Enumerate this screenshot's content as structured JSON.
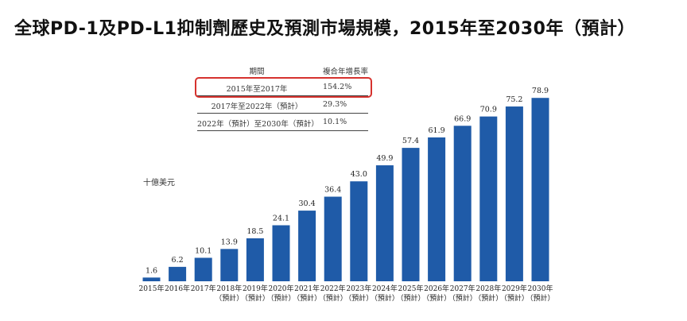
{
  "chart_data": {
    "type": "bar",
    "title": "全球PD-1及PD-L1抑制劑歷史及預測市場規模，2015年至2030年（預計）",
    "ylabel": "十億美元",
    "ylim": [
      0,
      80
    ],
    "grid": false,
    "categories": [
      {
        "year": "2015年",
        "note": ""
      },
      {
        "year": "2016年",
        "note": ""
      },
      {
        "year": "2017年",
        "note": ""
      },
      {
        "year": "2018年",
        "note": "（預計）"
      },
      {
        "year": "2019年",
        "note": "（預計）"
      },
      {
        "year": "2020年",
        "note": "（預計）"
      },
      {
        "year": "2021年",
        "note": "（預計）"
      },
      {
        "year": "2022年",
        "note": "（預計）"
      },
      {
        "year": "2023年",
        "note": "（預計）"
      },
      {
        "year": "2024年",
        "note": "（預計）"
      },
      {
        "year": "2025年",
        "note": "（預計）"
      },
      {
        "year": "2026年",
        "note": "（預計）"
      },
      {
        "year": "2027年",
        "note": "（預計）"
      },
      {
        "year": "2028年",
        "note": "（預計）"
      },
      {
        "year": "2029年",
        "note": "（預計）"
      },
      {
        "year": "2030年",
        "note": "（預計）"
      }
    ],
    "values": [
      1.6,
      6.2,
      10.1,
      13.9,
      18.5,
      24.1,
      30.4,
      36.4,
      43.0,
      49.9,
      57.4,
      61.9,
      66.9,
      70.9,
      75.2,
      78.9
    ],
    "value_labels": [
      "1.6",
      "6.2",
      "10.1",
      "13.9",
      "18.5",
      "24.1",
      "30.4",
      "36.4",
      "43.0",
      "49.9",
      "57.4",
      "61.9",
      "66.9",
      "70.9",
      "75.2",
      "78.9"
    ],
    "bar_color": "#1f5ba8"
  },
  "cagr_table": {
    "headers": {
      "period": "期間",
      "rate": "複合年增長率"
    },
    "rows": [
      {
        "period": "2015年至2017年",
        "rate": "154.2%",
        "highlighted": true
      },
      {
        "period": "2017年至2022年（預計）",
        "rate": "29.3%",
        "highlighted": false
      },
      {
        "period": "2022年（預計）至2030年（預計）",
        "rate": "10.1%",
        "highlighted": false
      }
    ],
    "highlight_color": "#d6322e"
  }
}
